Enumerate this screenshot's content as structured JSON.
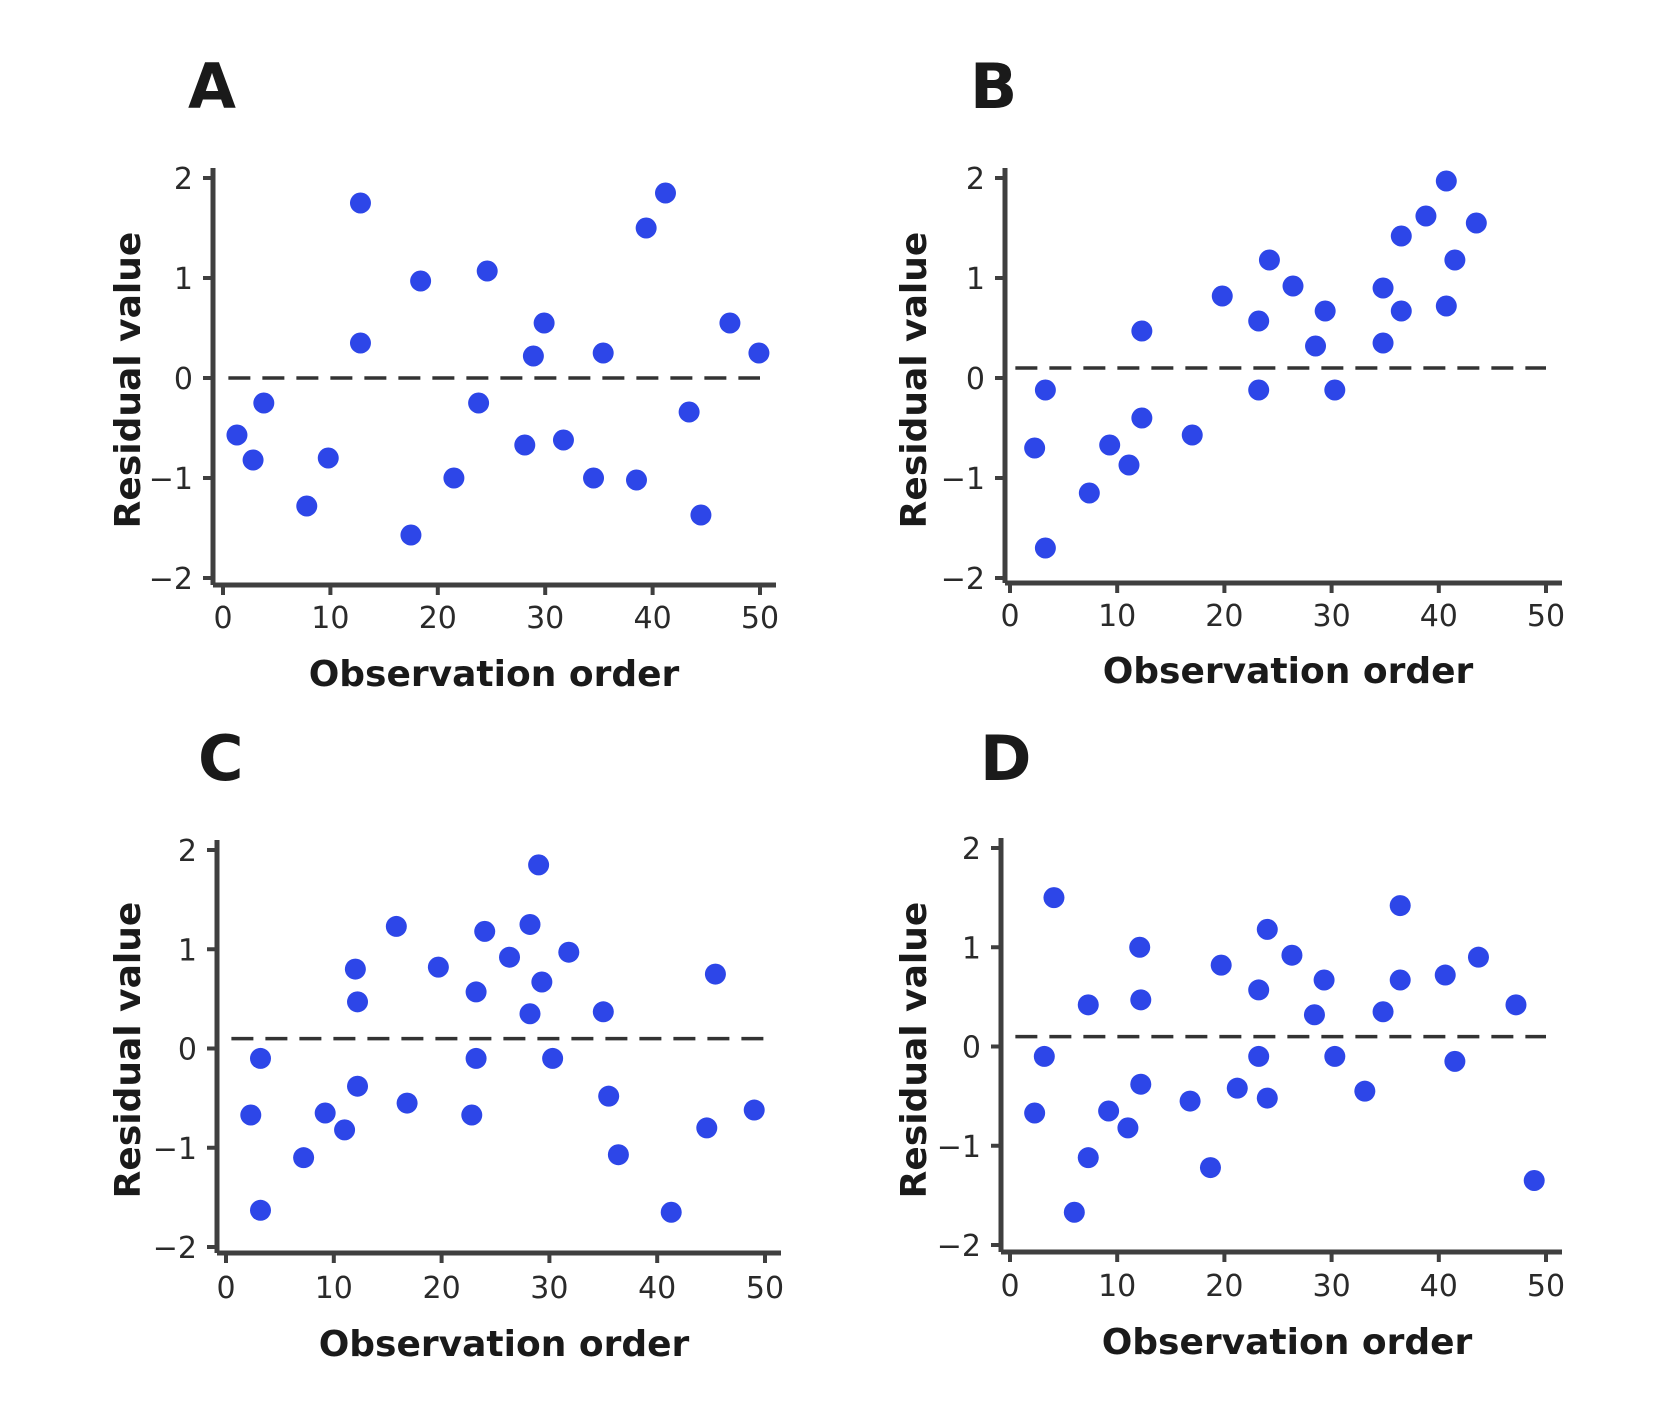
{
  "colors": {
    "point": "#2d46e8",
    "axis": "#3f3f3f",
    "text": "#1a1a1a",
    "purple_tick": "#5b2a8a"
  },
  "chart_data": [
    {
      "panel": "A",
      "type": "scatter",
      "xlabel": "Observation order",
      "ylabel": "Residual value",
      "xlim": [
        0,
        50
      ],
      "ylim": [
        -2,
        2
      ],
      "xticks": [
        "0",
        "10",
        "20",
        "30",
        "40",
        "50"
      ],
      "yticks": [
        "2",
        "1",
        "0",
        "−1",
        "−2"
      ],
      "reference_line": {
        "y": 0,
        "style": "dashed"
      },
      "points": [
        [
          1.3,
          -0.57
        ],
        [
          2.8,
          -0.82
        ],
        [
          3.8,
          -0.25
        ],
        [
          7.8,
          -1.28
        ],
        [
          9.8,
          -0.8
        ],
        [
          12.8,
          1.75
        ],
        [
          12.8,
          0.35
        ],
        [
          17.5,
          -1.57
        ],
        [
          18.4,
          0.97
        ],
        [
          21.5,
          -1.0
        ],
        [
          23.8,
          -0.25
        ],
        [
          24.6,
          1.07
        ],
        [
          28.1,
          -0.67
        ],
        [
          28.9,
          0.22
        ],
        [
          29.9,
          0.55
        ],
        [
          31.7,
          -0.62
        ],
        [
          34.5,
          -1.0
        ],
        [
          35.4,
          0.25
        ],
        [
          38.5,
          -1.02
        ],
        [
          39.4,
          1.5
        ],
        [
          41.2,
          1.85
        ],
        [
          43.4,
          -0.34
        ],
        [
          44.5,
          -1.37
        ],
        [
          47.2,
          0.55
        ],
        [
          49.9,
          0.25
        ]
      ]
    },
    {
      "panel": "B",
      "type": "scatter",
      "xlabel": "Observation order",
      "ylabel": "Residual value",
      "xlim": [
        0,
        50
      ],
      "ylim": [
        -2,
        2
      ],
      "xticks": [
        "0",
        "10",
        "20",
        "30",
        "40",
        "50"
      ],
      "yticks": [
        "2",
        "1",
        "0",
        "−1",
        "−2"
      ],
      "reference_line": {
        "y": 0.1,
        "style": "dashed"
      },
      "points": [
        [
          2.3,
          -0.7
        ],
        [
          3.3,
          -0.12
        ],
        [
          3.3,
          -1.7
        ],
        [
          7.4,
          -1.15
        ],
        [
          9.3,
          -0.67
        ],
        [
          11.1,
          -0.87
        ],
        [
          12.3,
          -0.4
        ],
        [
          12.3,
          0.47
        ],
        [
          17.0,
          -0.57
        ],
        [
          19.8,
          0.82
        ],
        [
          23.2,
          0.57
        ],
        [
          23.2,
          -0.12
        ],
        [
          24.2,
          1.18
        ],
        [
          26.4,
          0.92
        ],
        [
          28.5,
          0.32
        ],
        [
          29.4,
          0.67
        ],
        [
          30.3,
          -0.12
        ],
        [
          34.8,
          0.35
        ],
        [
          34.8,
          0.9
        ],
        [
          36.5,
          1.42
        ],
        [
          36.5,
          0.67
        ],
        [
          38.8,
          1.62
        ],
        [
          40.7,
          1.97
        ],
        [
          40.7,
          0.72
        ],
        [
          41.5,
          1.18
        ],
        [
          43.5,
          1.55
        ]
      ]
    },
    {
      "panel": "C",
      "type": "scatter",
      "xlabel": "Observation order",
      "ylabel": "Residual value",
      "xlim": [
        0,
        50
      ],
      "ylim": [
        -2,
        2
      ],
      "xticks": [
        "0",
        "10",
        "20",
        "30",
        "40",
        "50"
      ],
      "yticks": [
        "2",
        "1",
        "0",
        "−1",
        "−2"
      ],
      "reference_line": {
        "y": 0.1,
        "style": "dashed"
      },
      "points": [
        [
          2.3,
          -0.67
        ],
        [
          3.2,
          -0.1
        ],
        [
          3.2,
          -1.63
        ],
        [
          7.2,
          -1.1
        ],
        [
          9.2,
          -0.65
        ],
        [
          11.0,
          -0.82
        ],
        [
          12.2,
          -0.38
        ],
        [
          12.2,
          0.47
        ],
        [
          12.0,
          0.8
        ],
        [
          15.8,
          1.23
        ],
        [
          16.8,
          -0.55
        ],
        [
          19.7,
          0.82
        ],
        [
          22.8,
          -0.67
        ],
        [
          23.2,
          -0.1
        ],
        [
          23.2,
          0.57
        ],
        [
          24.0,
          1.18
        ],
        [
          26.3,
          0.92
        ],
        [
          28.2,
          1.25
        ],
        [
          28.2,
          0.35
        ],
        [
          29.0,
          1.85
        ],
        [
          29.3,
          0.67
        ],
        [
          30.3,
          -0.1
        ],
        [
          31.8,
          0.97
        ],
        [
          35.0,
          0.37
        ],
        [
          35.5,
          -0.48
        ],
        [
          36.4,
          -1.07
        ],
        [
          41.3,
          -1.65
        ],
        [
          44.6,
          -0.8
        ],
        [
          45.4,
          0.75
        ],
        [
          49.0,
          -0.62
        ]
      ]
    },
    {
      "panel": "D",
      "type": "scatter",
      "xlabel": "Observation order",
      "ylabel": "Residual value",
      "xlim": [
        0,
        50
      ],
      "ylim": [
        -2,
        2
      ],
      "xticks": [
        "0",
        "10",
        "20",
        "30",
        "40",
        "50"
      ],
      "yticks": [
        "2",
        "1",
        "0",
        "−1",
        "−2"
      ],
      "reference_line": {
        "y": 0.1,
        "style": "dashed"
      },
      "points": [
        [
          2.3,
          -0.67
        ],
        [
          3.2,
          -0.1
        ],
        [
          4.1,
          1.5
        ],
        [
          6.0,
          -1.67
        ],
        [
          7.3,
          -1.12
        ],
        [
          7.3,
          0.42
        ],
        [
          9.2,
          -0.65
        ],
        [
          11.0,
          -0.82
        ],
        [
          12.2,
          -0.38
        ],
        [
          12.2,
          0.47
        ],
        [
          12.1,
          1.0
        ],
        [
          16.8,
          -0.55
        ],
        [
          18.7,
          -1.22
        ],
        [
          19.7,
          0.82
        ],
        [
          21.2,
          -0.42
        ],
        [
          23.2,
          -0.1
        ],
        [
          23.2,
          0.57
        ],
        [
          24.0,
          -0.52
        ],
        [
          24.0,
          1.18
        ],
        [
          26.3,
          0.92
        ],
        [
          28.4,
          0.32
        ],
        [
          29.3,
          0.67
        ],
        [
          30.3,
          -0.1
        ],
        [
          33.1,
          -0.45
        ],
        [
          34.8,
          0.35
        ],
        [
          36.4,
          1.42
        ],
        [
          36.4,
          0.67
        ],
        [
          40.6,
          0.72
        ],
        [
          41.5,
          -0.15
        ],
        [
          43.7,
          0.9
        ],
        [
          47.2,
          0.42
        ],
        [
          48.9,
          -1.35
        ]
      ]
    }
  ]
}
